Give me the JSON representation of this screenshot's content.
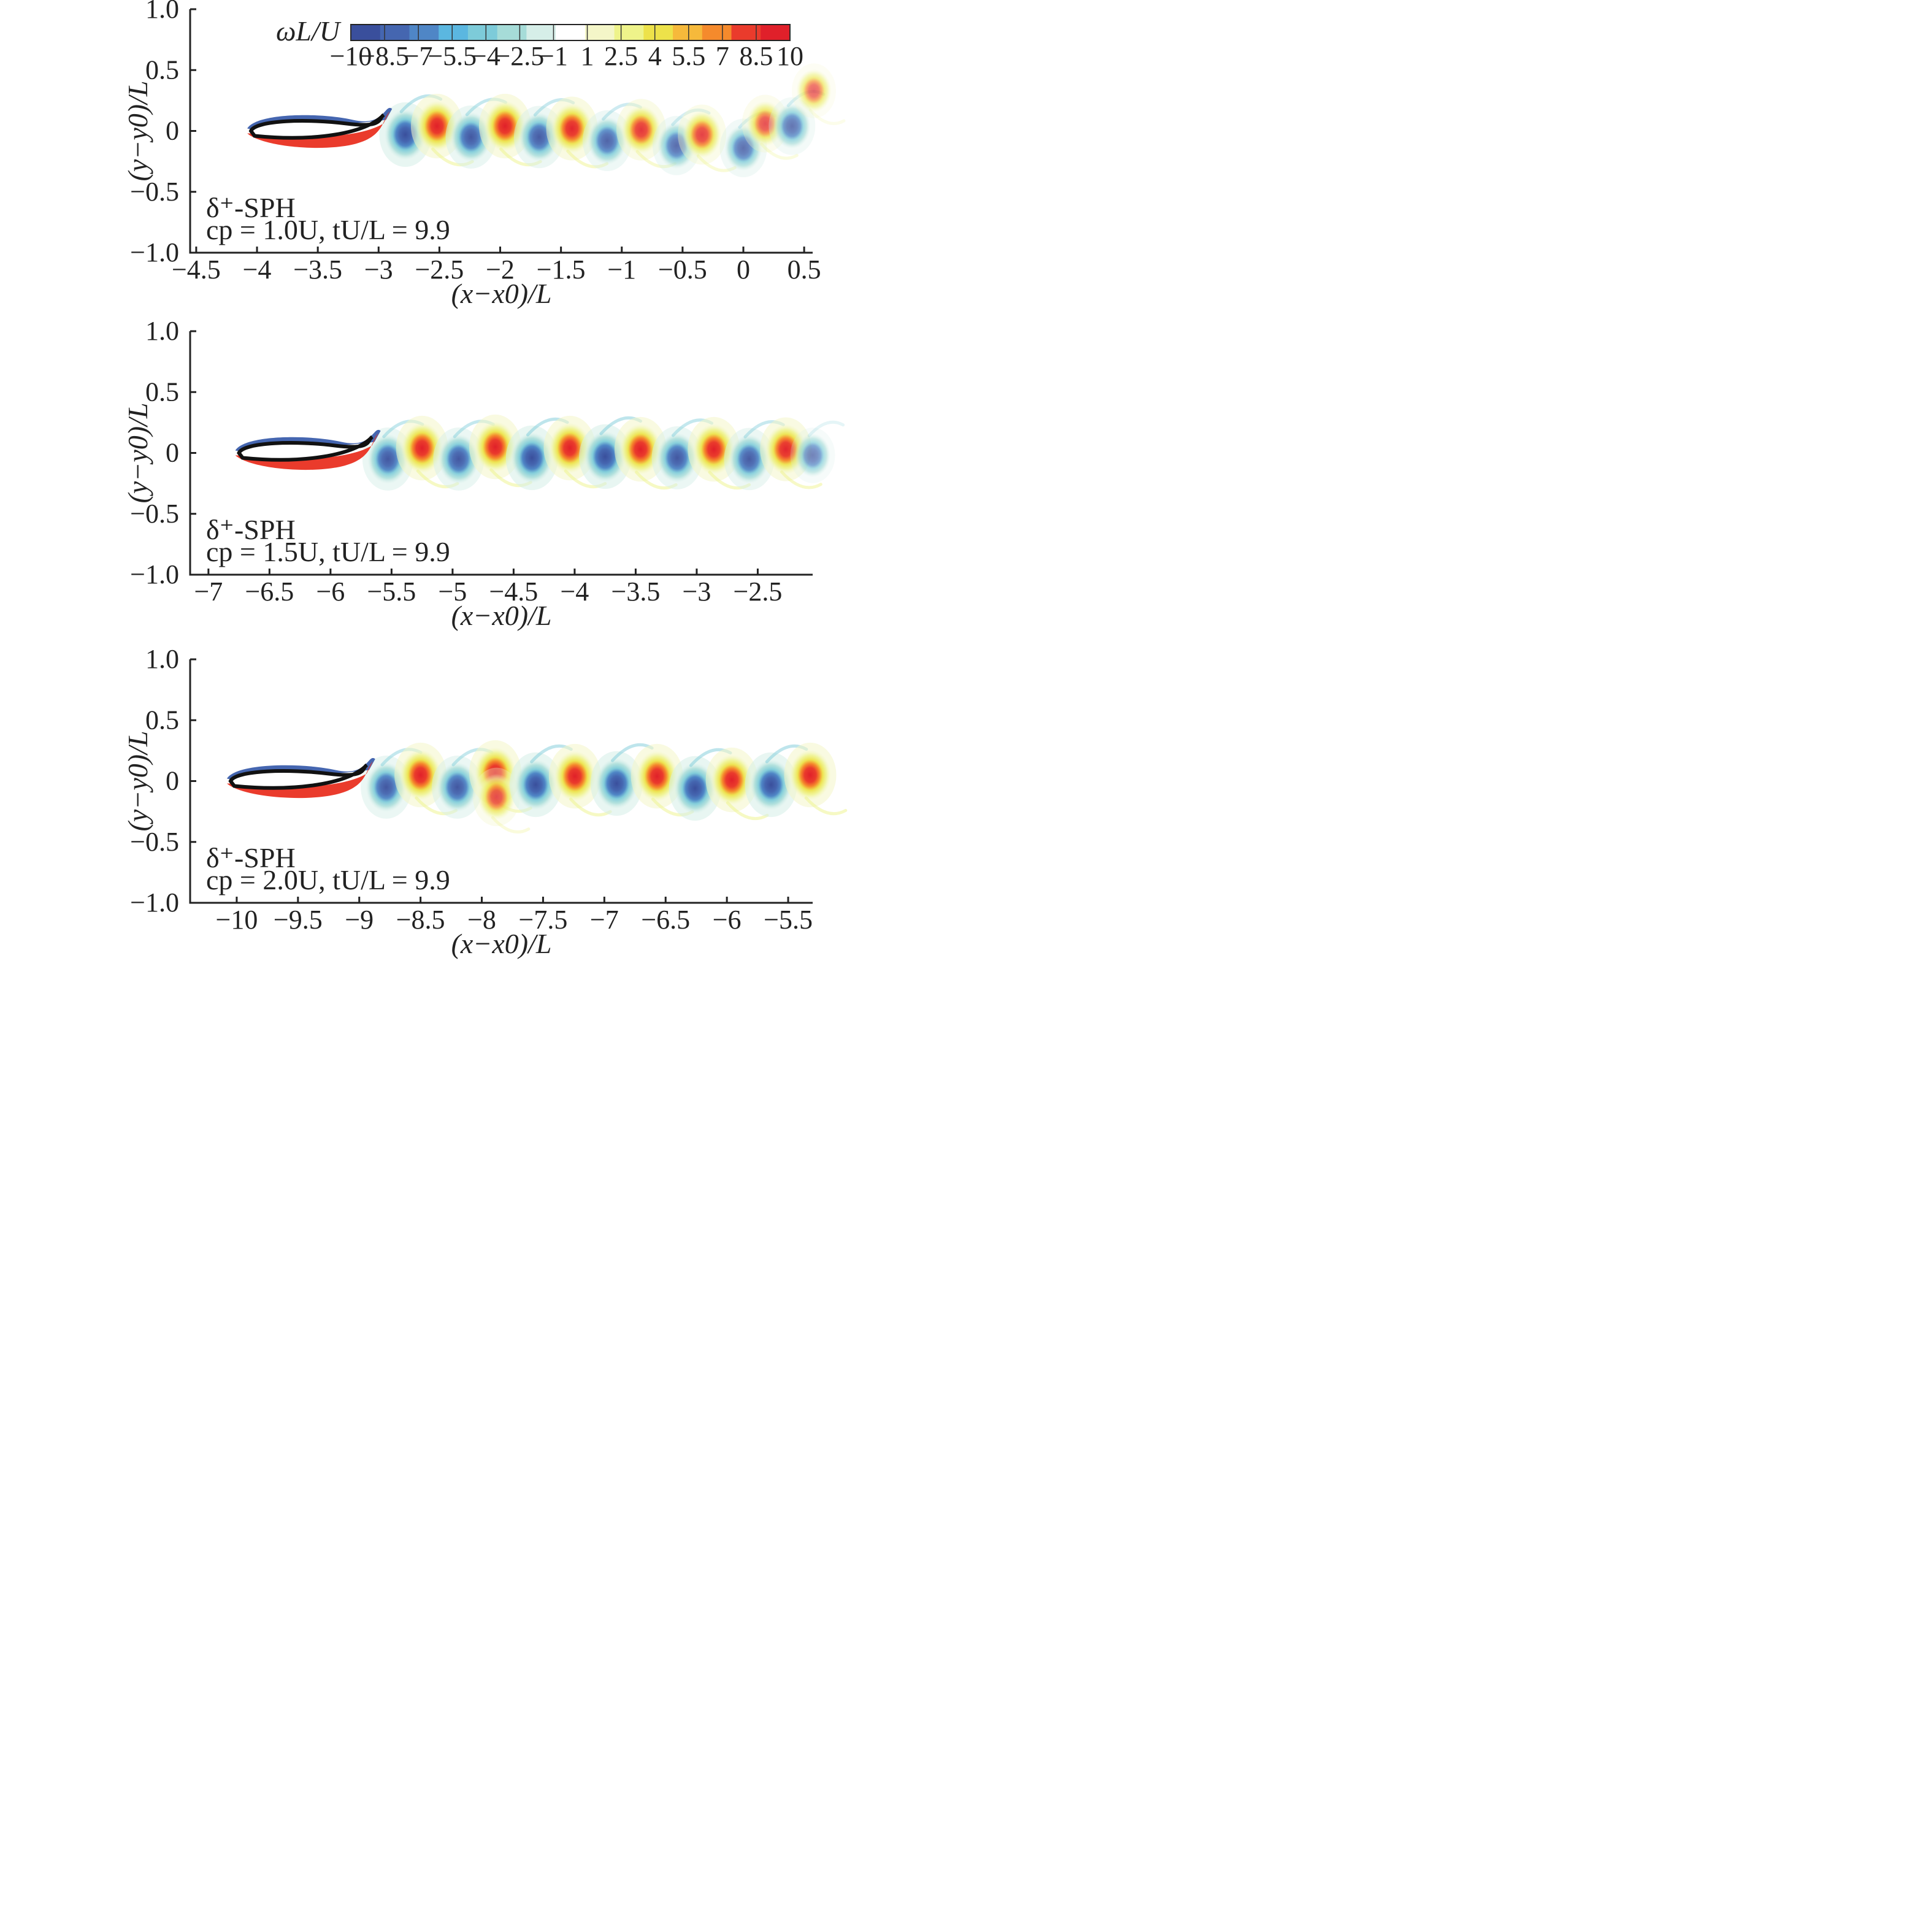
{
  "chart_data": [
    {
      "type": "heatmap",
      "panel": "top",
      "method_label": "δ⁺-SPH",
      "params_label": "cp = 1.0U, tU/L = 9.9",
      "xlabel": "(x−x0)/L",
      "ylabel": "(y−y0)/L",
      "xlim": [
        -4.55,
        0.57
      ],
      "ylim": [
        -1.0,
        1.0
      ],
      "xticks": [
        -4.5,
        -4,
        -3.5,
        -3,
        -2.5,
        -2,
        -1.5,
        -1,
        -0.5,
        0,
        0.5
      ],
      "xtick_labels": [
        "−4.5",
        "−4",
        "−3.5",
        "−3",
        "−2.5",
        "−2",
        "−1.5",
        "−1",
        "−0.5",
        "0",
        "0.5"
      ],
      "yticks": [
        1.0,
        0.5,
        0,
        -0.5,
        -1.0
      ],
      "ytick_labels": [
        "1.0",
        "0.5",
        "0",
        "−0.5",
        "−1.0"
      ],
      "body": {
        "leading_edge_x": -4.05,
        "trailing_edge_x": -3.0,
        "y": 0.0
      },
      "vortices": [
        {
          "x": -2.78,
          "y": -0.03,
          "sign": -1,
          "strength": 1.0
        },
        {
          "x": -2.52,
          "y": 0.04,
          "sign": 1,
          "strength": 1.0
        },
        {
          "x": -2.24,
          "y": -0.05,
          "sign": -1,
          "strength": 0.9
        },
        {
          "x": -1.96,
          "y": 0.04,
          "sign": 1,
          "strength": 1.0
        },
        {
          "x": -1.68,
          "y": -0.05,
          "sign": -1,
          "strength": 0.85
        },
        {
          "x": -1.41,
          "y": 0.02,
          "sign": 1,
          "strength": 0.95
        },
        {
          "x": -1.12,
          "y": -0.08,
          "sign": -1,
          "strength": 0.75
        },
        {
          "x": -0.84,
          "y": 0.01,
          "sign": 1,
          "strength": 0.8
        },
        {
          "x": -0.55,
          "y": -0.12,
          "sign": -1,
          "strength": 0.65
        },
        {
          "x": -0.34,
          "y": -0.03,
          "sign": 1,
          "strength": 0.7
        },
        {
          "x": 0.0,
          "y": -0.14,
          "sign": -1,
          "strength": 0.6
        },
        {
          "x": 0.18,
          "y": 0.06,
          "sign": 1,
          "strength": 0.55
        },
        {
          "x": 0.4,
          "y": 0.04,
          "sign": -1,
          "strength": 0.55
        },
        {
          "x": 0.58,
          "y": 0.33,
          "sign": 1,
          "strength": 0.35
        }
      ]
    },
    {
      "type": "heatmap",
      "panel": "middle",
      "method_label": "δ⁺-SPH",
      "params_label": "cp = 1.5U, tU/L = 9.9",
      "xlabel": "(x−x0)/L",
      "ylabel": "(y−y0)/L",
      "xlim": [
        -7.15,
        -2.05
      ],
      "ylim": [
        -1.0,
        1.0
      ],
      "xticks": [
        -7,
        -6.5,
        -6,
        -5.5,
        -5,
        -4.5,
        -4,
        -3.5,
        -3,
        -2.5
      ],
      "xtick_labels": [
        "−7",
        "−6.5",
        "−6",
        "−5.5",
        "−5",
        "−4.5",
        "−4",
        "−3.5",
        "−3",
        "−2.5"
      ],
      "yticks": [
        1.0,
        0.5,
        0,
        -0.5,
        -1.0
      ],
      "ytick_labels": [
        "1.0",
        "0.5",
        "0",
        "−0.5",
        "−1.0"
      ],
      "body": {
        "leading_edge_x": -6.75,
        "trailing_edge_x": -5.7,
        "y": 0.0
      },
      "vortices": [
        {
          "x": -5.53,
          "y": -0.05,
          "sign": -1,
          "strength": 0.9
        },
        {
          "x": -5.25,
          "y": 0.04,
          "sign": 1,
          "strength": 1.0
        },
        {
          "x": -4.95,
          "y": -0.05,
          "sign": -1,
          "strength": 0.9
        },
        {
          "x": -4.65,
          "y": 0.05,
          "sign": 1,
          "strength": 1.0
        },
        {
          "x": -4.35,
          "y": -0.04,
          "sign": -1,
          "strength": 1.0
        },
        {
          "x": -4.04,
          "y": 0.04,
          "sign": 1,
          "strength": 1.0
        },
        {
          "x": -3.75,
          "y": -0.03,
          "sign": -1,
          "strength": 1.0
        },
        {
          "x": -3.46,
          "y": 0.03,
          "sign": 1,
          "strength": 1.0
        },
        {
          "x": -3.16,
          "y": -0.04,
          "sign": -1,
          "strength": 0.9
        },
        {
          "x": -2.86,
          "y": 0.03,
          "sign": 1,
          "strength": 1.0
        },
        {
          "x": -2.57,
          "y": -0.05,
          "sign": -1,
          "strength": 0.85
        },
        {
          "x": -2.27,
          "y": 0.03,
          "sign": 1,
          "strength": 0.95
        },
        {
          "x": -2.05,
          "y": -0.02,
          "sign": -1,
          "strength": 0.4
        }
      ]
    },
    {
      "type": "heatmap",
      "panel": "bottom",
      "method_label": "δ⁺-SPH",
      "params_label": "cp = 2.0U, tU/L = 9.9",
      "xlabel": "(x−x0)/L",
      "ylabel": "(y−y0)/L",
      "xlim": [
        -10.38,
        -5.3
      ],
      "ylim": [
        -1.0,
        1.0
      ],
      "xticks": [
        -10,
        -9.5,
        -9,
        -8.5,
        -8,
        -7.5,
        -7,
        -6.5,
        -6,
        -5.5
      ],
      "xtick_labels": [
        "−10",
        "−9.5",
        "−9",
        "−8.5",
        "−8",
        "−7.5",
        "−7",
        "−6.5",
        "−6",
        "−5.5"
      ],
      "yticks": [
        1.0,
        0.5,
        0,
        -0.5,
        -1.0
      ],
      "ytick_labels": [
        "1.0",
        "0.5",
        "0",
        "−0.5",
        "−1.0"
      ],
      "body": {
        "leading_edge_x": -10.05,
        "trailing_edge_x": -8.98,
        "y": 0.0
      },
      "vortices": [
        {
          "x": -8.78,
          "y": -0.05,
          "sign": -1,
          "strength": 0.9
        },
        {
          "x": -8.5,
          "y": 0.05,
          "sign": 1,
          "strength": 1.0
        },
        {
          "x": -8.2,
          "y": -0.05,
          "sign": -1,
          "strength": 0.9
        },
        {
          "x": -7.89,
          "y": 0.07,
          "sign": 1,
          "strength": 1.0
        },
        {
          "x": -7.88,
          "y": -0.13,
          "sign": 1,
          "strength": 0.6
        },
        {
          "x": -7.56,
          "y": -0.03,
          "sign": -1,
          "strength": 1.0
        },
        {
          "x": -7.24,
          "y": 0.04,
          "sign": 1,
          "strength": 1.0
        },
        {
          "x": -6.9,
          "y": -0.02,
          "sign": -1,
          "strength": 1.0
        },
        {
          "x": -6.57,
          "y": 0.04,
          "sign": 1,
          "strength": 1.0
        },
        {
          "x": -6.26,
          "y": -0.06,
          "sign": -1,
          "strength": 1.0
        },
        {
          "x": -5.96,
          "y": 0.01,
          "sign": 1,
          "strength": 1.0
        },
        {
          "x": -5.64,
          "y": -0.03,
          "sign": -1,
          "strength": 1.0
        },
        {
          "x": -5.32,
          "y": 0.05,
          "sign": 1,
          "strength": 1.0
        }
      ]
    }
  ],
  "colorbar": {
    "title": "ωL/U",
    "vmin": -10,
    "vmax": 10,
    "levels": [
      -10,
      -8.5,
      -7,
      -5.5,
      -4,
      -2.5,
      -1,
      1,
      2.5,
      4,
      5.5,
      7,
      8.5,
      10
    ],
    "tick_labels": [
      "−10",
      "−8.5",
      "−7",
      "−5.5",
      "−4",
      "−2.5",
      "−1",
      "1",
      "2.5",
      "4",
      "5.5",
      "7",
      "8.5",
      "10"
    ],
    "colors": [
      "#3a4f9c",
      "#4566b0",
      "#4f86c6",
      "#5bb7e0",
      "#7dcbd9",
      "#a6dcd8",
      "#d6eee8",
      "#ffffff",
      "#f4f6c8",
      "#eef38a",
      "#ede24a",
      "#f6b93b",
      "#f58a2c",
      "#ea3b2c",
      "#e0202a"
    ]
  }
}
